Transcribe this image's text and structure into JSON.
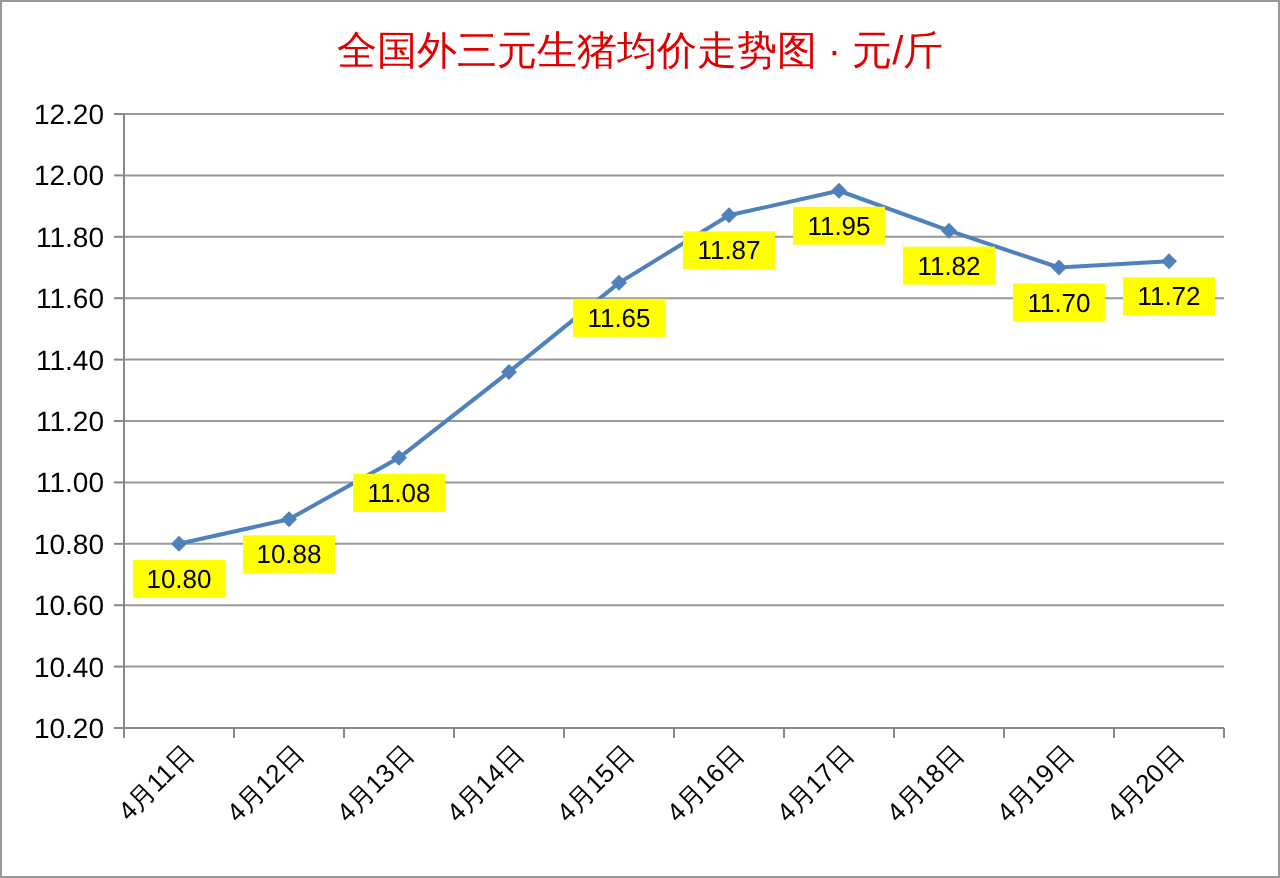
{
  "chart_data": {
    "type": "line",
    "title": "全国外三元生猪均价走势图 · 元/斤",
    "categories": [
      "4月11日",
      "4月12日",
      "4月13日",
      "4月14日",
      "4月15日",
      "4月16日",
      "4月17日",
      "4月18日",
      "4月19日",
      "4月20日"
    ],
    "series": [
      {
        "color": "#4f81bd",
        "values": [
          10.8,
          10.88,
          11.08,
          11.36,
          11.65,
          11.87,
          11.95,
          11.82,
          11.7,
          11.72
        ],
        "value_labels": [
          "10.80",
          "10.88",
          "11.08",
          null,
          "11.65",
          "11.87",
          "11.95",
          "11.82",
          "11.70",
          "11.72"
        ]
      }
    ],
    "ylim": [
      10.2,
      12.2
    ],
    "yticks": [
      "10.20",
      "10.40",
      "10.60",
      "10.80",
      "11.00",
      "11.20",
      "11.40",
      "11.60",
      "11.80",
      "12.00",
      "12.20"
    ],
    "grid": "y",
    "marker": "diamond"
  }
}
